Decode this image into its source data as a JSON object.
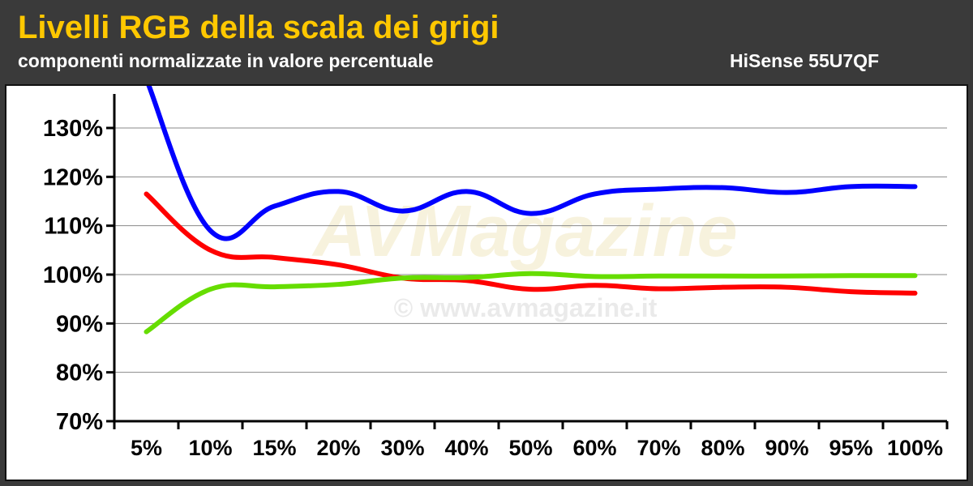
{
  "header": {
    "title": "Livelli RGB della scala dei grigi",
    "subtitle": "componenti normalizzate in valore percentuale",
    "model": "HiSense 55U7QF"
  },
  "watermark": {
    "brand": "AVMagazine",
    "url": "© www.avmagazine.it"
  },
  "colors": {
    "header_bg": "#3a3a3a",
    "title": "#ffc800",
    "red": "#ff0000",
    "green": "#66dd00",
    "blue": "#0000ff",
    "grid": "#888888"
  },
  "chart_data": {
    "type": "line",
    "title": "Livelli RGB della scala dei grigi",
    "subtitle": "componenti normalizzate in valore percentuale",
    "categories": [
      "5%",
      "10%",
      "15%",
      "20%",
      "30%",
      "40%",
      "50%",
      "60%",
      "70%",
      "80%",
      "90%",
      "95%",
      "100%"
    ],
    "ylim": [
      70,
      130
    ],
    "yticks": [
      "70%",
      "80%",
      "90%",
      "100%",
      "110%",
      "120%",
      "130%"
    ],
    "ytick_values": [
      70,
      80,
      90,
      100,
      110,
      120,
      130
    ],
    "grid": true,
    "series": [
      {
        "color": "#0000ff",
        "values": [
          140,
          109,
          114,
          117,
          113,
          117,
          112.5,
          116.5,
          117.5,
          117.8,
          116.8,
          118,
          118
        ]
      },
      {
        "color": "#ff0000",
        "values": [
          116.5,
          105,
          103.5,
          102,
          99.3,
          98.8,
          97,
          97.8,
          97.1,
          97.4,
          97.4,
          96.5,
          96.2
        ]
      },
      {
        "color": "#66dd00",
        "values": [
          88.3,
          97,
          97.5,
          98,
          99.3,
          99.4,
          100.2,
          99.6,
          99.7,
          99.7,
          99.7,
          99.8,
          99.8
        ]
      }
    ]
  }
}
